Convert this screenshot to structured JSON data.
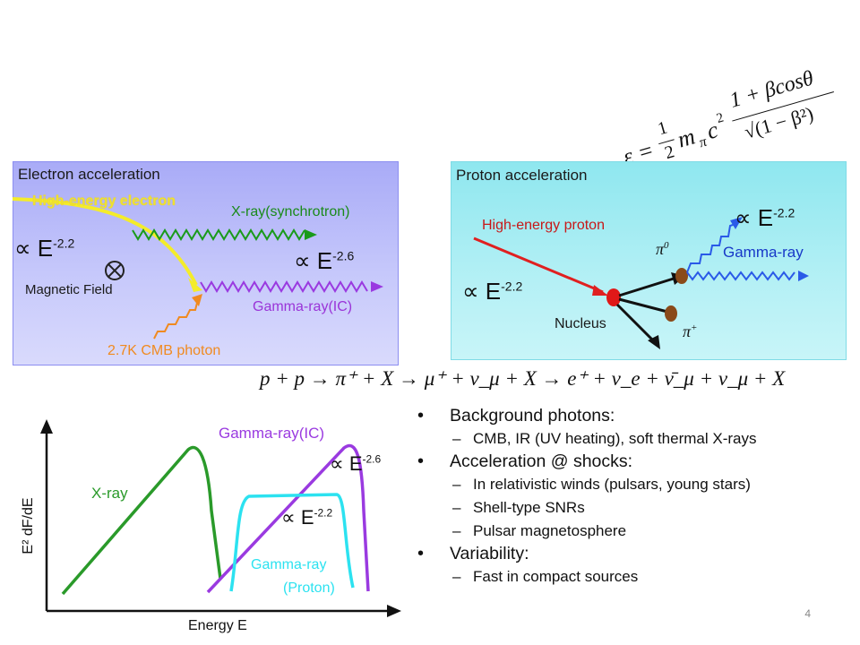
{
  "electron_panel": {
    "title": "Electron acceleration",
    "high_energy_electron": "High-energy electron",
    "xray_synchrotron": "X-ray(synchrotron)",
    "index_electron": "∝ E",
    "index_electron_exp": "-2.2",
    "magnetic_field": "Magnetic Field",
    "index_gamma": "∝ E",
    "index_gamma_exp": "-2.6",
    "gamma_ic": "Gamma-ray(IC)",
    "cmb_photon": "2.7K CMB photon"
  },
  "proton_panel": {
    "title": "Proton acceleration",
    "high_energy_proton": "High-energy proton",
    "index_proton": "∝ E",
    "index_proton_exp": "-2.2",
    "nucleus": "Nucleus",
    "pi0": "π",
    "pi0_sup": "0",
    "pi_plus": "π",
    "pi_plus_sup": "+",
    "index_gamma": "∝ E",
    "index_gamma_exp": "-2.2",
    "gamma_ray": "Gamma-ray"
  },
  "formulas": {
    "energy_lhs": "ε =",
    "energy_rhs_num": "1 + βcosθ",
    "energy_rhs_den": "√(1 − β²)",
    "energy_half": "1",
    "energy_two": "2",
    "energy_mpc": "m",
    "energy_pi": "π",
    "energy_c2": "c",
    "reaction": "p + p → π⁺ + X → μ⁺ + ν_μ + X → e⁺ + ν_e + ν̄_μ + ν_μ + X"
  },
  "spectrum": {
    "ylabel": "E² dF/dE",
    "xlabel": "Energy E",
    "xray": "X-ray",
    "gamma_ic": "Gamma-ray(IC)",
    "gamma_proton_1": "Gamma-ray",
    "gamma_proton_2": "(Proton)",
    "index_26": "∝ E",
    "index_26_exp": "-2.6",
    "index_22": "∝ E",
    "index_22_exp": "-2.2",
    "colors": {
      "xray": "#2a9a2a",
      "ic": "#9a3ae0",
      "proton": "#1fe0f0"
    }
  },
  "bullets": [
    {
      "text": "Background photons:",
      "sub": [
        "CMB, IR (UV heating), soft thermal X-rays"
      ]
    },
    {
      "text": "Acceleration @ shocks:",
      "sub": [
        "In relativistic winds (pulsars, young stars)",
        "Shell-type SNRs",
        "Pulsar magnetosphere"
      ]
    },
    {
      "text": "Variability:",
      "sub": [
        "Fast in compact sources"
      ]
    }
  ],
  "page_number": "4"
}
